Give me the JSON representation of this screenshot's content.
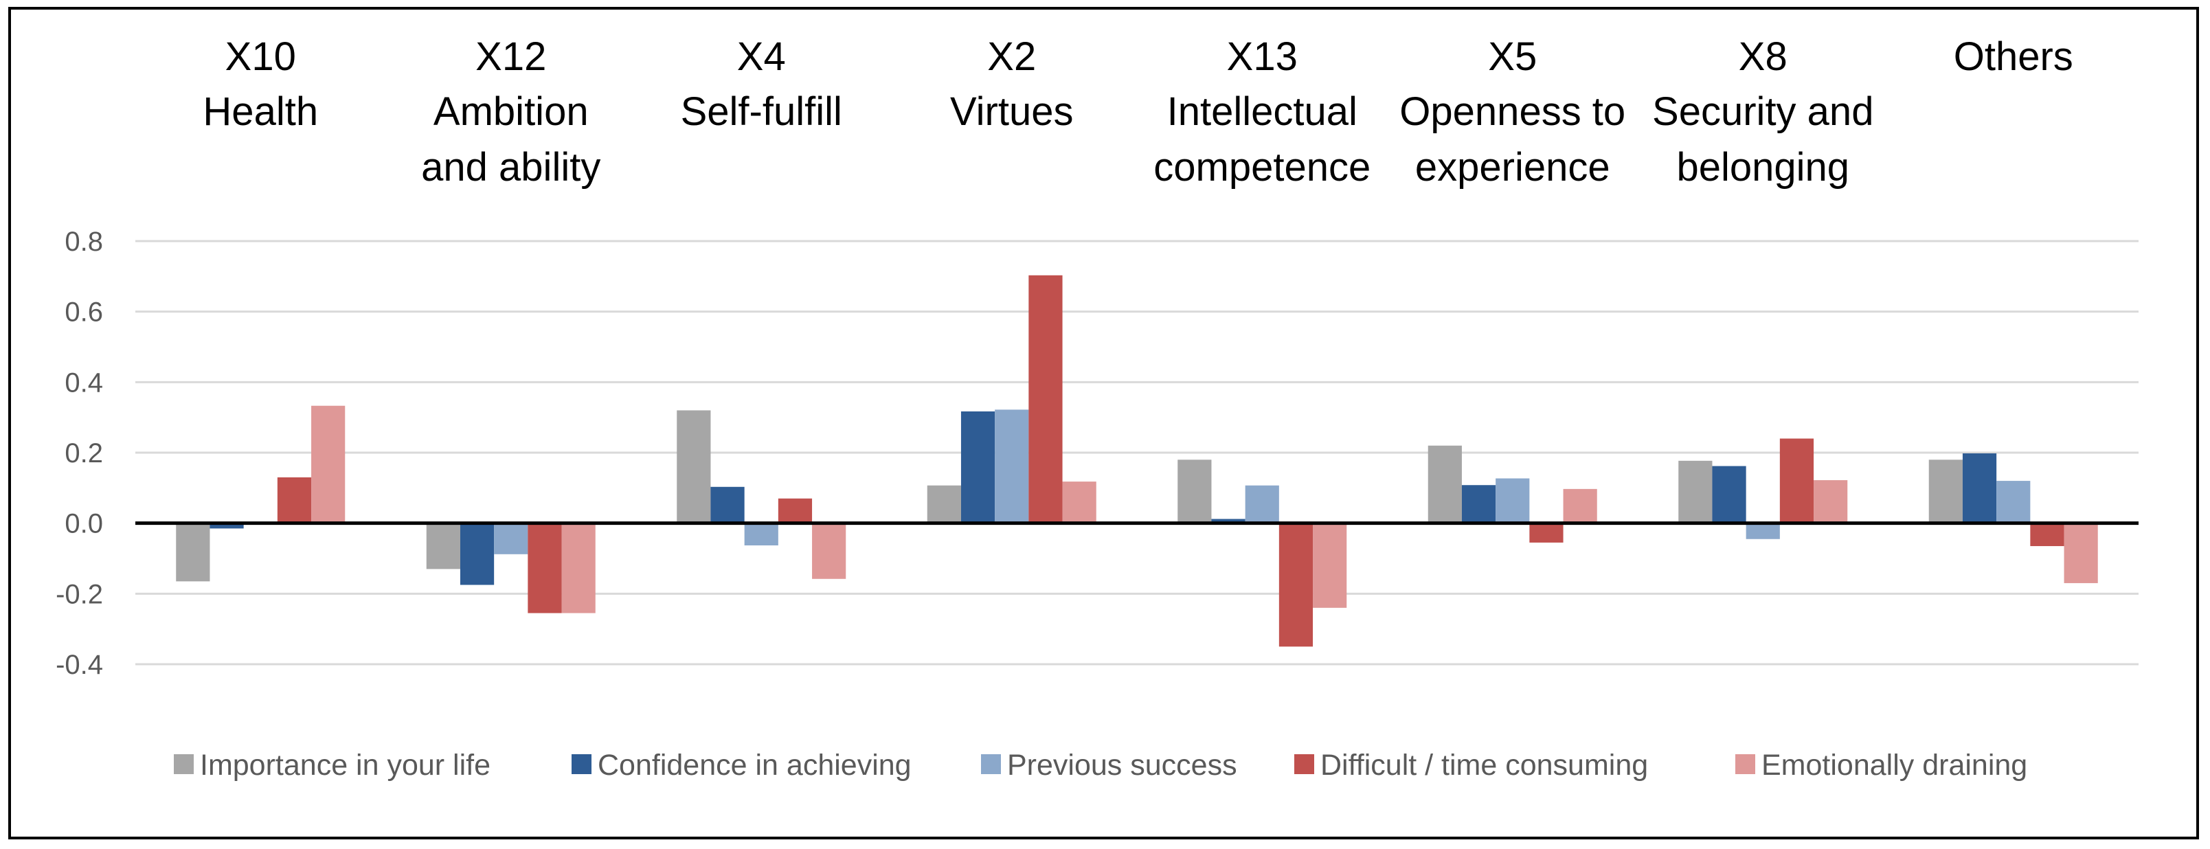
{
  "chart_data": {
    "type": "bar",
    "title": "",
    "xlabel": "",
    "ylabel": "",
    "ylim": [
      -0.4,
      0.8
    ],
    "yticks": [
      "0.8",
      "0.6",
      "0.4",
      "0.2",
      "0.0",
      "-0.2",
      "-0.4"
    ],
    "ytick_values": [
      0.8,
      0.6,
      0.4,
      0.2,
      0.0,
      -0.2,
      -0.4
    ],
    "grid": true,
    "legend_position": "bottom",
    "category_position": "top",
    "categories": [
      [
        "X10",
        "Health"
      ],
      [
        "X12",
        "Ambition",
        "and ability"
      ],
      [
        "X4",
        "Self-fulfill"
      ],
      [
        "X2",
        "Virtues"
      ],
      [
        "X13",
        "Intellectual",
        "competence"
      ],
      [
        "X5",
        "Openness to",
        "experience"
      ],
      [
        "X8",
        "Security and",
        "belonging"
      ],
      [
        "Others"
      ]
    ],
    "series": [
      {
        "name": "Importance in your life",
        "color": "#a6a6a6",
        "values": [
          -0.165,
          -0.13,
          0.32,
          0.107,
          0.18,
          0.22,
          0.177,
          0.18
        ]
      },
      {
        "name": "Confidence in achieving",
        "color": "#2e5c94",
        "values": [
          -0.015,
          -0.175,
          0.103,
          0.317,
          0.012,
          0.108,
          0.162,
          0.198
        ]
      },
      {
        "name": "Previous success",
        "color": "#8ba8cb",
        "values": [
          0.0,
          -0.088,
          -0.063,
          0.322,
          0.107,
          0.127,
          -0.045,
          0.12
        ]
      },
      {
        "name": "Difficult / time consuming",
        "color": "#c0504d",
        "values": [
          0.13,
          -0.255,
          0.07,
          0.703,
          -0.35,
          -0.055,
          0.24,
          -0.065
        ]
      },
      {
        "name": "Emotionally draining",
        "color": "#df9897",
        "values": [
          0.333,
          -0.255,
          -0.158,
          0.118,
          -0.24,
          0.097,
          0.122,
          -0.17
        ]
      }
    ]
  }
}
